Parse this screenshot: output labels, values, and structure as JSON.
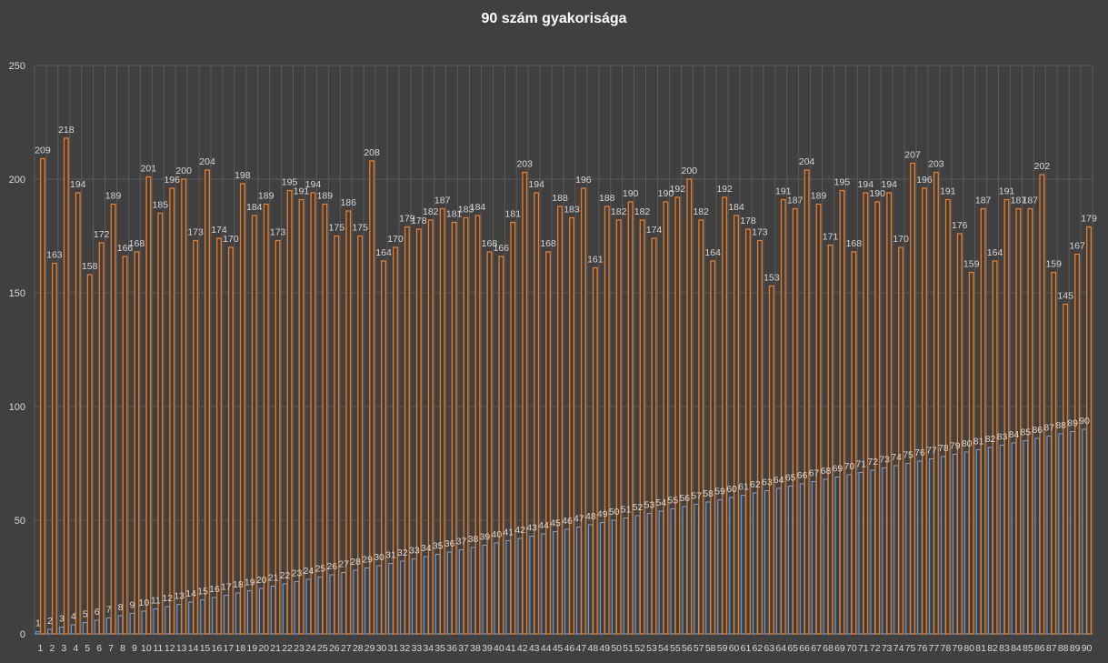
{
  "chart_data": {
    "type": "bar",
    "title": "90 szám gyakorisága",
    "xlabel": "",
    "ylabel": "",
    "ylim": [
      0,
      250
    ],
    "yticks": [
      0,
      50,
      100,
      150,
      200,
      250
    ],
    "grid": true,
    "legend": "none",
    "categories": [
      "1",
      "2",
      "3",
      "4",
      "5",
      "6",
      "7",
      "8",
      "9",
      "10",
      "11",
      "12",
      "13",
      "14",
      "15",
      "16",
      "17",
      "18",
      "19",
      "20",
      "21",
      "22",
      "23",
      "24",
      "25",
      "26",
      "27",
      "28",
      "29",
      "30",
      "31",
      "32",
      "33",
      "34",
      "35",
      "36",
      "37",
      "38",
      "39",
      "40",
      "41",
      "42",
      "43",
      "44",
      "45",
      "46",
      "47",
      "48",
      "49",
      "50",
      "51",
      "52",
      "53",
      "54",
      "55",
      "56",
      "57",
      "58",
      "59",
      "60",
      "61",
      "62",
      "63",
      "64",
      "65",
      "66",
      "67",
      "68",
      "69",
      "70",
      "71",
      "72",
      "73",
      "74",
      "75",
      "76",
      "77",
      "78",
      "79",
      "80",
      "81",
      "82",
      "83",
      "84",
      "85",
      "86",
      "87",
      "88",
      "89",
      "90"
    ],
    "series": [
      {
        "color": "#6f9fd8",
        "values": [
          1,
          2,
          3,
          4,
          5,
          6,
          7,
          8,
          9,
          10,
          11,
          12,
          13,
          14,
          15,
          16,
          17,
          18,
          19,
          20,
          21,
          22,
          23,
          24,
          25,
          26,
          27,
          28,
          29,
          30,
          31,
          32,
          33,
          34,
          35,
          36,
          37,
          38,
          39,
          40,
          41,
          42,
          43,
          44,
          45,
          46,
          47,
          48,
          49,
          50,
          51,
          52,
          53,
          54,
          55,
          56,
          57,
          58,
          59,
          60,
          61,
          62,
          63,
          64,
          65,
          66,
          67,
          68,
          69,
          70,
          71,
          72,
          73,
          74,
          75,
          76,
          77,
          78,
          79,
          80,
          81,
          82,
          83,
          84,
          85,
          86,
          87,
          88,
          89,
          90
        ]
      },
      {
        "color": "#f07c22",
        "values": [
          209,
          163,
          218,
          194,
          158,
          172,
          189,
          166,
          168,
          201,
          185,
          196,
          200,
          173,
          204,
          174,
          170,
          198,
          184,
          189,
          173,
          195,
          191,
          194,
          189,
          175,
          186,
          175,
          208,
          164,
          170,
          179,
          178,
          182,
          187,
          181,
          183,
          184,
          168,
          166,
          181,
          203,
          194,
          168,
          188,
          183,
          196,
          161,
          188,
          182,
          190,
          182,
          174,
          190,
          192,
          200,
          182,
          164,
          192,
          184,
          178,
          173,
          153,
          191,
          187,
          204,
          189,
          171,
          195,
          168,
          194,
          190,
          194,
          170,
          207,
          196,
          203,
          191,
          176,
          159,
          187,
          164,
          191,
          187,
          187,
          202,
          159,
          145,
          167,
          179
        ]
      }
    ]
  }
}
